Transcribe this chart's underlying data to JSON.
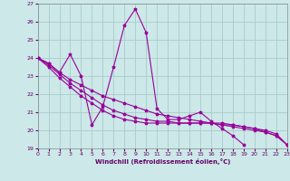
{
  "xlabel": "Windchill (Refroidissement éolien,°C)",
  "xlim": [
    0,
    23
  ],
  "ylim": [
    19,
    27
  ],
  "yticks": [
    19,
    20,
    21,
    22,
    23,
    24,
    25,
    26,
    27
  ],
  "xticks": [
    0,
    1,
    2,
    3,
    4,
    5,
    6,
    7,
    8,
    9,
    10,
    11,
    12,
    13,
    14,
    15,
    16,
    17,
    18,
    19,
    20,
    21,
    22,
    23
  ],
  "bg_color": "#cce8e8",
  "grid_color": "#aacccc",
  "line_color": "#990099",
  "lines": [
    {
      "x": [
        0,
        1,
        2,
        3,
        4,
        5,
        6,
        7,
        8,
        9,
        10,
        11,
        12,
        13,
        14,
        15,
        16,
        17,
        18,
        19,
        20,
        21,
        22,
        23
      ],
      "y": [
        24.0,
        23.7,
        23.2,
        24.2,
        23.0,
        20.3,
        21.3,
        23.5,
        25.8,
        26.7,
        25.4,
        21.2,
        20.6,
        20.6,
        20.8,
        21.0,
        20.5,
        20.1,
        19.7,
        19.2,
        null,
        null,
        null,
        null
      ]
    },
    {
      "x": [
        0,
        1,
        2,
        3,
        4,
        5,
        6,
        7,
        8,
        9,
        10,
        11,
        12,
        13,
        14,
        15,
        16,
        17,
        18,
        19,
        20,
        21,
        22,
        23
      ],
      "y": [
        24.0,
        23.7,
        23.2,
        22.8,
        22.5,
        22.2,
        21.9,
        21.7,
        21.5,
        21.3,
        21.1,
        20.9,
        20.8,
        20.7,
        20.6,
        20.5,
        20.4,
        20.3,
        20.2,
        20.1,
        20.0,
        19.9,
        19.7,
        19.2
      ]
    },
    {
      "x": [
        0,
        1,
        2,
        3,
        4,
        5,
        6,
        7,
        8,
        9,
        10,
        11,
        12,
        13,
        14,
        15,
        16,
        17,
        18,
        19,
        20,
        21,
        22,
        23
      ],
      "y": [
        24.0,
        23.5,
        22.9,
        22.4,
        21.9,
        21.5,
        21.1,
        20.8,
        20.6,
        20.5,
        20.4,
        20.4,
        20.4,
        20.4,
        20.4,
        20.4,
        20.4,
        20.4,
        20.3,
        20.2,
        20.1,
        19.9,
        19.7,
        19.2
      ]
    },
    {
      "x": [
        0,
        1,
        2,
        3,
        4,
        5,
        6,
        7,
        8,
        9,
        10,
        11,
        12,
        13,
        14,
        15,
        16,
        17,
        18,
        19,
        20,
        21,
        22,
        23
      ],
      "y": [
        24.0,
        23.6,
        23.1,
        22.6,
        22.2,
        21.8,
        21.4,
        21.1,
        20.9,
        20.7,
        20.6,
        20.5,
        20.5,
        20.4,
        20.4,
        20.4,
        20.4,
        20.3,
        20.3,
        20.2,
        20.1,
        20.0,
        19.8,
        19.2
      ]
    }
  ]
}
